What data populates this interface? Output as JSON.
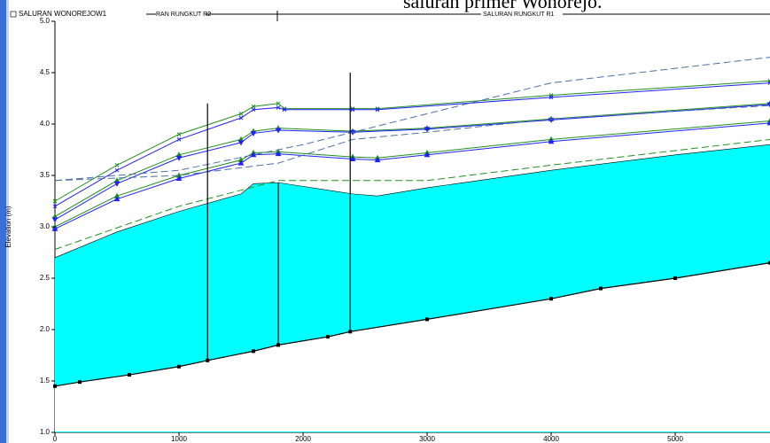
{
  "overlay_text": "saluran primer Wonorejo.",
  "chart_data": {
    "type": "line",
    "header": {
      "legend": "SALURAN WONOREJOW1",
      "reach_left": "RAN RUNGKUT R2",
      "reach_right": "SALURAN RUNGKUT R1"
    },
    "ylabel": "Elevation (m)",
    "xlim": [
      0,
      5764
    ],
    "ylim": [
      1.0,
      5.0
    ],
    "xticks": [
      0,
      1000,
      2000,
      3000,
      4000,
      5000
    ],
    "yticks": [
      {
        "value": 1.0,
        "label": "1.0"
      },
      {
        "value": 1.5,
        "label": "1.5"
      },
      {
        "value": 2.0,
        "label": "2.0"
      },
      {
        "value": 2.5,
        "label": "2.5"
      },
      {
        "value": 3.0,
        "label": "3.0"
      },
      {
        "value": 3.5,
        "label": "3.5"
      },
      {
        "value": 4.0,
        "label": "4.0"
      },
      {
        "value": 4.5,
        "label": "4.5"
      },
      {
        "value": 5.0,
        "label": "5.0"
      }
    ],
    "water": {
      "color": "#00ffff",
      "x": [
        0,
        500,
        1000,
        1500,
        1600,
        1800,
        2400,
        2600,
        3000,
        4000,
        5000,
        5764
      ],
      "values": [
        2.7,
        2.95,
        3.15,
        3.32,
        3.42,
        3.43,
        3.32,
        3.3,
        3.38,
        3.55,
        3.7,
        3.8
      ]
    },
    "bed": {
      "color": "#000000",
      "x": [
        0,
        200,
        600,
        1000,
        1230,
        1600,
        1800,
        2200,
        2380,
        3000,
        4000,
        4400,
        5000,
        5764
      ],
      "values": [
        1.45,
        1.49,
        1.56,
        1.64,
        1.7,
        1.79,
        1.85,
        1.93,
        1.98,
        2.1,
        2.3,
        2.4,
        2.5,
        2.65
      ]
    },
    "series": [
      {
        "color": "#1f8f1f",
        "dash": false,
        "marker": "x",
        "x": [
          0,
          500,
          1000,
          1500,
          1600,
          1800,
          1850,
          2400,
          2600,
          4000,
          5764
        ],
        "values": [
          3.25,
          3.6,
          3.9,
          4.1,
          4.17,
          4.2,
          4.15,
          4.15,
          4.15,
          4.28,
          4.42
        ]
      },
      {
        "color": "#2020ff",
        "dash": false,
        "marker": "x",
        "x": [
          0,
          500,
          1000,
          1500,
          1600,
          1800,
          1850,
          2400,
          2600,
          4000,
          5764
        ],
        "values": [
          3.2,
          3.55,
          3.85,
          4.06,
          4.14,
          4.16,
          4.14,
          4.14,
          4.14,
          4.26,
          4.4
        ]
      },
      {
        "color": "#1f8f1f",
        "dash": false,
        "marker": "tri-up",
        "x": [
          0,
          500,
          1000,
          1500,
          1600,
          1800,
          2400,
          3000,
          4000,
          5764
        ],
        "values": [
          3.1,
          3.45,
          3.7,
          3.85,
          3.93,
          3.96,
          3.93,
          3.96,
          4.05,
          4.2
        ]
      },
      {
        "color": "#2020ff",
        "dash": false,
        "marker": "tri-down",
        "x": [
          0,
          500,
          1000,
          1500,
          1600,
          1800,
          2400,
          3000,
          4000,
          5764
        ],
        "values": [
          3.07,
          3.42,
          3.67,
          3.82,
          3.91,
          3.94,
          3.92,
          3.95,
          4.04,
          4.19
        ]
      },
      {
        "color": "#1f8f1f",
        "dash": false,
        "marker": "tri-up",
        "x": [
          0,
          500,
          1000,
          1500,
          1600,
          1800,
          2400,
          2600,
          3000,
          4000,
          5764
        ],
        "values": [
          3.0,
          3.3,
          3.5,
          3.65,
          3.72,
          3.73,
          3.68,
          3.67,
          3.72,
          3.85,
          4.03
        ]
      },
      {
        "color": "#2020ff",
        "dash": false,
        "marker": "tri-up",
        "x": [
          0,
          500,
          1000,
          1500,
          1600,
          1800,
          2400,
          2600,
          3000,
          4000,
          5764
        ],
        "values": [
          2.98,
          3.27,
          3.47,
          3.62,
          3.7,
          3.71,
          3.66,
          3.65,
          3.7,
          3.83,
          4.01
        ]
      },
      {
        "color": "#4a6fa5",
        "dash": true,
        "marker": "none",
        "x": [
          0,
          1000,
          2000,
          3000,
          4000,
          5764
        ],
        "values": [
          3.45,
          3.55,
          3.8,
          4.1,
          4.4,
          4.65
        ]
      },
      {
        "color": "#4a6fa5",
        "dash": true,
        "marker": "none",
        "x": [
          0,
          1000,
          1800,
          2400,
          3000,
          4000,
          5764
        ],
        "values": [
          3.45,
          3.5,
          3.62,
          3.85,
          3.92,
          4.05,
          4.18
        ]
      },
      {
        "color": "#1f8f1f",
        "dash": true,
        "marker": "none",
        "x": [
          0,
          1000,
          1800,
          3000,
          4000,
          5764
        ],
        "values": [
          2.78,
          3.2,
          3.45,
          3.45,
          3.6,
          3.85
        ]
      }
    ],
    "structures": [
      {
        "x": 1230,
        "top": 4.2,
        "bottom": 1.7
      },
      {
        "x": 1800,
        "top": 3.43,
        "bottom": 1.85
      },
      {
        "x": 2380,
        "top": 4.5,
        "bottom": 1.98
      }
    ]
  }
}
